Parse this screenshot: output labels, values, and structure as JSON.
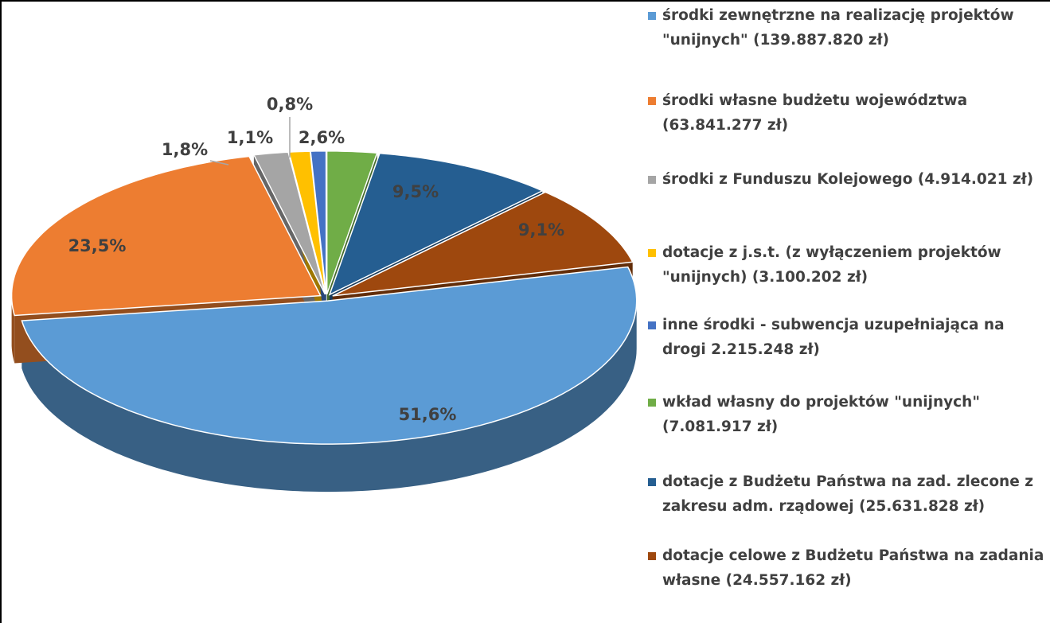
{
  "chart_data": {
    "type": "pie",
    "series": [
      {
        "name": "środki zewnętrzne na realizację projektów \"unijnych\" (139.887.820 zł)",
        "color": "#5b9bd5",
        "value": 51.6,
        "value_label": "51,6%"
      },
      {
        "name": "środki własne budżetu województwa (63.841.277 zł)",
        "color": "#ed7d31",
        "value": 23.5,
        "value_label": "23,5%"
      },
      {
        "name": "środki z Funduszu Kolejowego (4.914.021 zł)",
        "color": "#a5a5a5",
        "value": 1.8,
        "value_label": "1,8%"
      },
      {
        "name": "dotacje z j.s.t. (z wyłączeniem projektów \"unijnych) (3.100.202 zł)",
        "color": "#ffc000",
        "value": 1.1,
        "value_label": "1,1%"
      },
      {
        "name": "inne środki - subwencja uzupełniająca na drogi 2.215.248 zł)",
        "color": "#4472c4",
        "value": 0.8,
        "value_label": "0,8%"
      },
      {
        "name": "wkład własny do projektów \"unijnych\" (7.081.917 zł)",
        "color": "#70ad47",
        "value": 2.6,
        "value_label": "2,6%"
      },
      {
        "name": "dotacje z Budżetu Państwa na zad. zlecone z zakresu adm. rządowej (25.631.828 zł)",
        "color": "#255e91",
        "value": 9.5,
        "value_label": "9,5%"
      },
      {
        "name": "dotacje celowe z Budżetu Państwa na zadania własne (24.557.162 zł)",
        "color": "#9e480e",
        "value": 9.1,
        "value_label": "9,1%"
      }
    ],
    "legend": "right"
  }
}
